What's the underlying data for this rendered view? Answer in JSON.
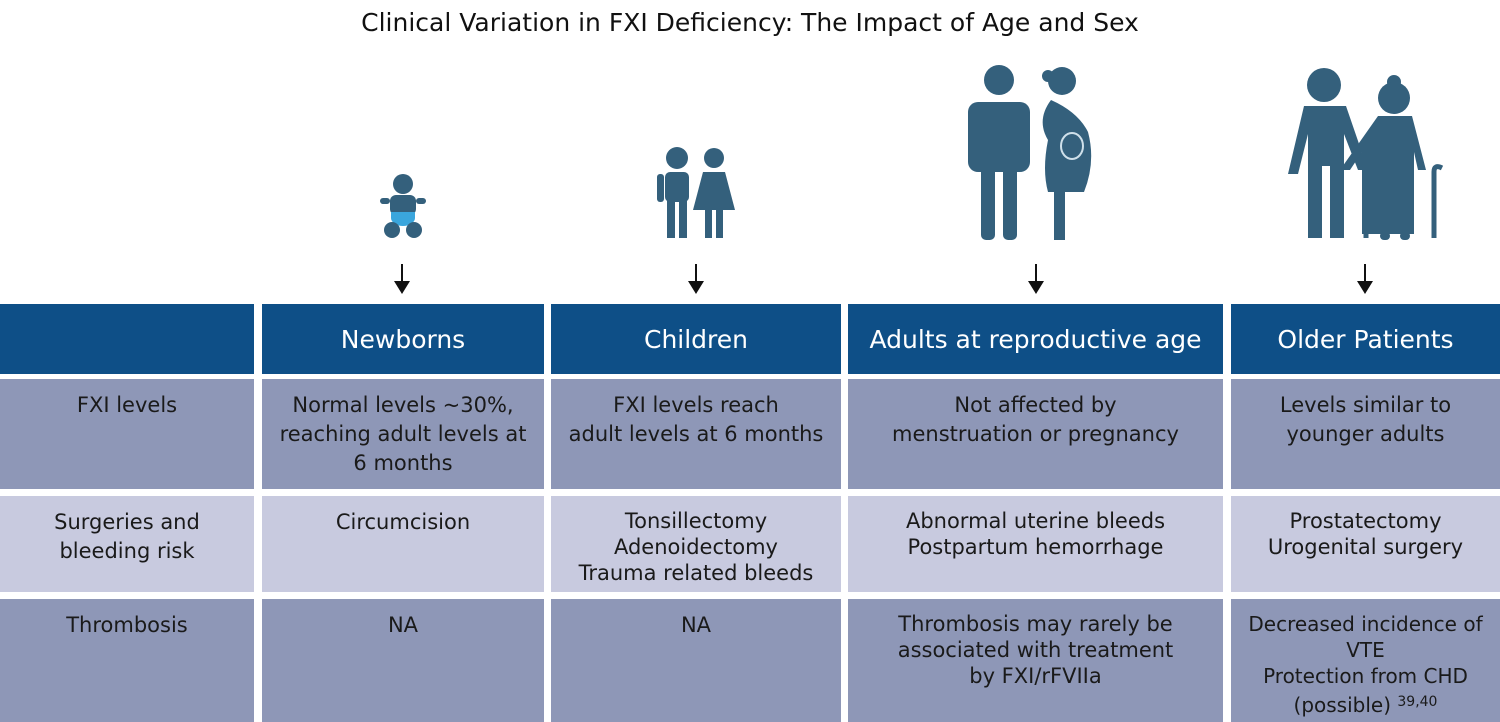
{
  "title": "Clinical Variation in FXI Deficiency: The Impact of Age and Sex",
  "colors": {
    "header": "#0e4f87",
    "row_dark": "#8e97b7",
    "row_light": "#c8cadf",
    "icon": "#34607c"
  },
  "icons": [
    "baby-icon",
    "children-icon",
    "adult-man-pregnant-woman-icon",
    "elderly-couple-icon"
  ],
  "columns": [
    "",
    "Newborns",
    "Children",
    "Adults at reproductive age",
    "Older Patients"
  ],
  "rows": [
    {
      "label": "FXI levels",
      "cells": [
        [
          "Normal levels ~30%,",
          "reaching adult levels at",
          "6 months"
        ],
        [
          "FXI levels reach",
          "adult levels at 6 months"
        ],
        [
          "Not affected by",
          "menstruation or pregnancy"
        ],
        [
          "Levels similar to",
          "younger adults"
        ]
      ]
    },
    {
      "label": [
        "Surgeries and",
        "bleeding risk"
      ],
      "cells": [
        [
          "Circumcision"
        ],
        [
          "Tonsillectomy",
          "Adenoidectomy",
          "Trauma related bleeds"
        ],
        [
          "Abnormal uterine bleeds",
          "Postpartum hemorrhage"
        ],
        [
          "Prostatectomy",
          "Urogenital surgery"
        ]
      ]
    },
    {
      "label": "Thrombosis",
      "cells": [
        [
          "NA"
        ],
        [
          "NA"
        ],
        [
          "Thrombosis may rarely be",
          "associated with treatment",
          "by FXI/rFVIIa"
        ],
        [
          "Decreased incidence of",
          "VTE",
          "Protection from CHD",
          "(possible)"
        ]
      ]
    }
  ],
  "citation": "39,40"
}
